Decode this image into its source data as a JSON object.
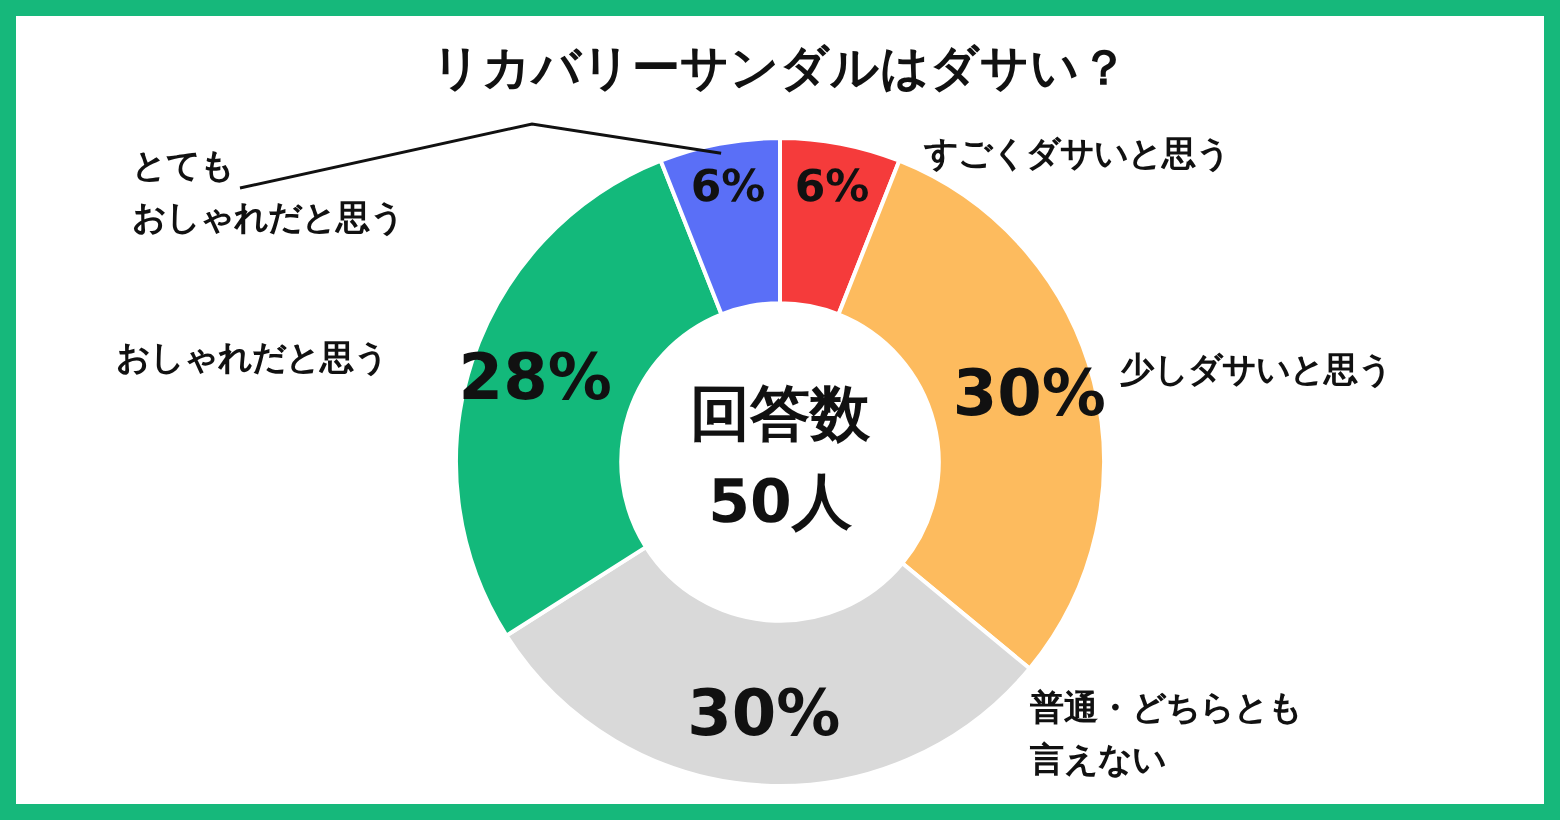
{
  "chart_data": {
    "type": "donut",
    "title": "リカバリーサンダルはダサい？",
    "categories": [
      "すごくダサいと思う",
      "少しダサいと思う",
      "普通・どちらとも言えない",
      "おしゃれだと思う",
      "とてもおしゃれだと思う"
    ],
    "values": [
      6,
      30,
      30,
      28,
      6
    ],
    "colors": [
      "#f53b3b",
      "#fdbb5e",
      "#d9d9d9",
      "#13b97b",
      "#5a6ff7"
    ],
    "value_labels": [
      "6%",
      "30%",
      "30%",
      "28%",
      "6%"
    ],
    "legend": false,
    "annotations": [
      "回答数\n50人"
    ]
  }
}
